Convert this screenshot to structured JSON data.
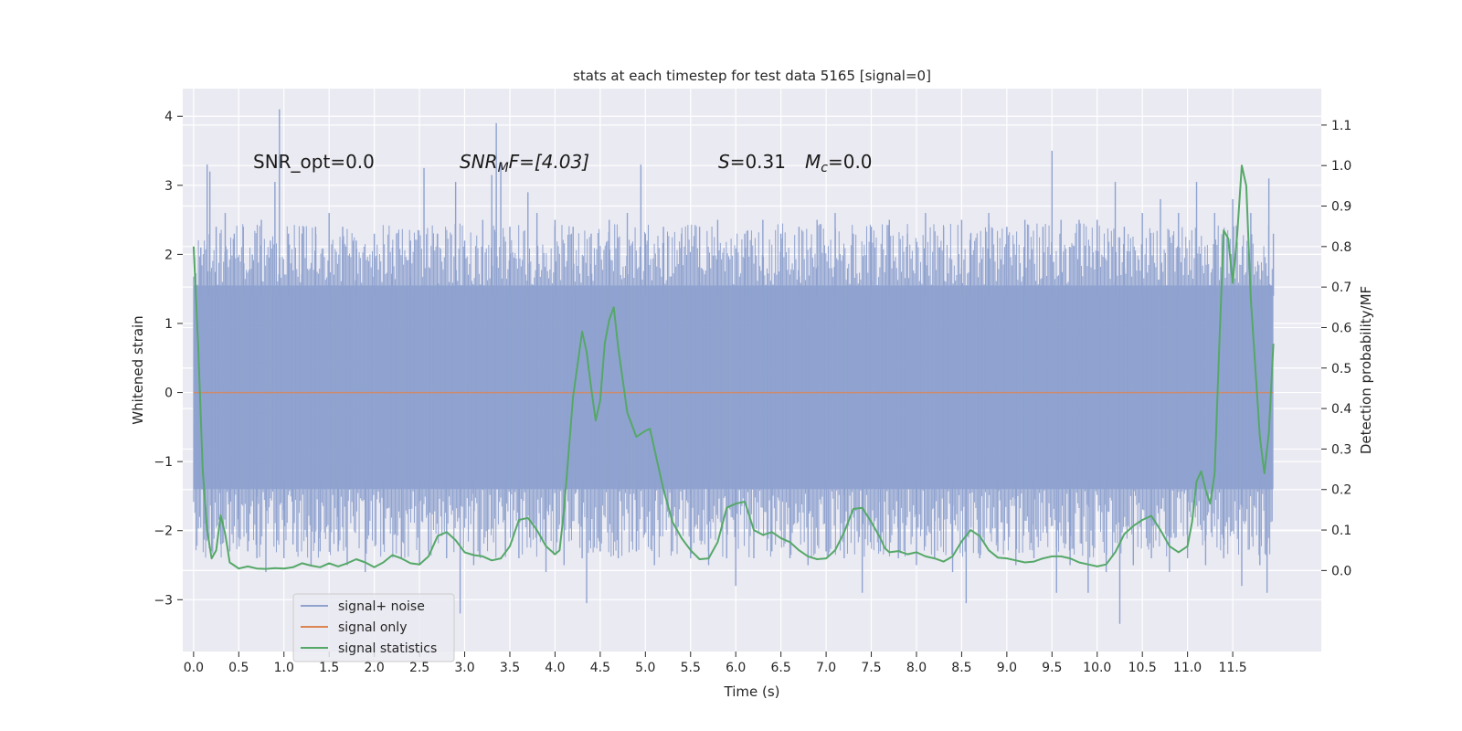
{
  "chart_data": {
    "type": "line",
    "title": "stats at each timestep for test data 5165 [signal=0]",
    "xlabel": "Time (s)",
    "ylabel": "Whitened strain",
    "y2label": "Detection probability/MF",
    "xlim": [
      -0.12,
      12.48
    ],
    "ylim": [
      -3.75,
      4.4
    ],
    "y2lim": [
      -0.2,
      1.19
    ],
    "x_ticks": [
      0.0,
      0.5,
      1.0,
      1.5,
      2.0,
      2.5,
      3.0,
      3.5,
      4.0,
      4.5,
      5.0,
      5.5,
      6.0,
      6.5,
      7.0,
      7.5,
      8.0,
      8.5,
      9.0,
      9.5,
      10.0,
      10.5,
      11.0,
      11.5
    ],
    "x_tick_labels": [
      "0.0",
      "0.5",
      "1.0",
      "1.5",
      "2.0",
      "2.5",
      "3.0",
      "3.5",
      "4.0",
      "4.5",
      "5.0",
      "5.5",
      "6.0",
      "6.5",
      "7.0",
      "7.5",
      "8.0",
      "8.5",
      "9.0",
      "9.5",
      "10.0",
      "10.5",
      "11.0",
      "11.5"
    ],
    "y_ticks": [
      -3,
      -2,
      -1,
      0,
      1,
      2,
      3,
      4
    ],
    "y_tick_labels": [
      "−3",
      "−2",
      "−1",
      "0",
      "1",
      "2",
      "3",
      "4"
    ],
    "y2_ticks": [
      0.0,
      0.1,
      0.2,
      0.3,
      0.4,
      0.5,
      0.6,
      0.7,
      0.8,
      0.9,
      1.0,
      1.1
    ],
    "y2_tick_labels": [
      "0.0",
      "0.1",
      "0.2",
      "0.3",
      "0.4",
      "0.5",
      "0.6",
      "0.7",
      "0.8",
      "0.9",
      "1.0",
      "1.1"
    ],
    "grid": true,
    "legend_position": "lower-left",
    "annotations": {
      "snr_opt": "SNR_opt=0.0",
      "snr_mf_italic": "SNR",
      "snr_mf_sub": "M",
      "snr_mf_rest": "F=[4.03]",
      "s_italic": "S",
      "s_rest": "=0.31",
      "mc_italic": "M",
      "mc_sub": "c",
      "mc_rest": "=0.0"
    },
    "series": [
      {
        "name": "signal+ noise",
        "color": "#8fa2cf",
        "noise_envelope": {
          "x_start": 0.0,
          "x_end": 11.95,
          "dense_low": -1.4,
          "dense_high": 1.55
        },
        "spikes": [
          [
            0.08,
            2.1
          ],
          [
            0.12,
            -1.9
          ],
          [
            0.15,
            3.3
          ],
          [
            0.18,
            3.2
          ],
          [
            0.2,
            -2.3
          ],
          [
            0.25,
            2.4
          ],
          [
            0.3,
            -2.2
          ],
          [
            0.35,
            2.6
          ],
          [
            0.4,
            -2.3
          ],
          [
            0.45,
            2.3
          ],
          [
            0.5,
            -2.1
          ],
          [
            0.55,
            2.4
          ],
          [
            0.6,
            -2.3
          ],
          [
            0.65,
            2.0
          ],
          [
            0.7,
            -2.4
          ],
          [
            0.75,
            2.5
          ],
          [
            0.8,
            -2.6
          ],
          [
            0.85,
            2.2
          ],
          [
            0.9,
            3.05
          ],
          [
            0.95,
            4.1
          ],
          [
            1.0,
            -2.4
          ],
          [
            1.05,
            2.3
          ],
          [
            1.1,
            -2.2
          ],
          [
            1.2,
            2.3
          ],
          [
            1.3,
            -2.5
          ],
          [
            1.35,
            2.4
          ],
          [
            1.4,
            -2.3
          ],
          [
            1.5,
            2.6
          ],
          [
            1.6,
            -2.3
          ],
          [
            1.65,
            2.4
          ],
          [
            1.7,
            -2.5
          ],
          [
            1.8,
            2.2
          ],
          [
            1.9,
            -2.6
          ],
          [
            2.0,
            2.3
          ],
          [
            2.1,
            -2.2
          ],
          [
            2.2,
            2.1
          ],
          [
            2.3,
            -2.4
          ],
          [
            2.4,
            2.2
          ],
          [
            2.5,
            -2.5
          ],
          [
            2.55,
            3.25
          ],
          [
            2.6,
            -2.3
          ],
          [
            2.7,
            2.3
          ],
          [
            2.8,
            -2.4
          ],
          [
            2.9,
            3.05
          ],
          [
            2.95,
            -3.2
          ],
          [
            3.0,
            2.2
          ],
          [
            3.1,
            -2.5
          ],
          [
            3.2,
            2.5
          ],
          [
            3.3,
            3.15
          ],
          [
            3.35,
            3.9
          ],
          [
            3.4,
            3.3
          ],
          [
            3.45,
            -2.3
          ],
          [
            3.5,
            2.4
          ],
          [
            3.6,
            -2.4
          ],
          [
            3.7,
            2.9
          ],
          [
            3.8,
            2.6
          ],
          [
            3.9,
            -2.6
          ],
          [
            4.0,
            2.5
          ],
          [
            4.1,
            -2.5
          ],
          [
            4.2,
            2.4
          ],
          [
            4.3,
            -2.4
          ],
          [
            4.35,
            -3.05
          ],
          [
            4.4,
            2.3
          ],
          [
            4.5,
            -2.3
          ],
          [
            4.6,
            2.5
          ],
          [
            4.7,
            -2.4
          ],
          [
            4.8,
            2.6
          ],
          [
            4.9,
            -2.3
          ],
          [
            4.95,
            3.3
          ],
          [
            5.0,
            2.3
          ],
          [
            5.1,
            -2.5
          ],
          [
            5.2,
            2.4
          ],
          [
            5.3,
            -2.3
          ],
          [
            5.4,
            2.3
          ],
          [
            5.5,
            -2.4
          ],
          [
            5.6,
            2.4
          ],
          [
            5.7,
            -2.5
          ],
          [
            5.8,
            2.5
          ],
          [
            5.9,
            -2.4
          ],
          [
            6.0,
            -2.8
          ],
          [
            6.1,
            2.3
          ],
          [
            6.2,
            -2.4
          ],
          [
            6.3,
            2.5
          ],
          [
            6.4,
            -2.3
          ],
          [
            6.5,
            2.3
          ],
          [
            6.6,
            -2.4
          ],
          [
            6.7,
            2.4
          ],
          [
            6.8,
            -2.5
          ],
          [
            6.9,
            2.5
          ],
          [
            7.0,
            -2.3
          ],
          [
            7.1,
            2.6
          ],
          [
            7.2,
            -2.4
          ],
          [
            7.3,
            2.3
          ],
          [
            7.4,
            -2.9
          ],
          [
            7.5,
            2.4
          ],
          [
            7.6,
            -2.3
          ],
          [
            7.7,
            2.5
          ],
          [
            7.8,
            -2.4
          ],
          [
            7.9,
            2.3
          ],
          [
            8.0,
            -2.5
          ],
          [
            8.1,
            2.6
          ],
          [
            8.2,
            -2.4
          ],
          [
            8.3,
            2.4
          ],
          [
            8.4,
            -2.6
          ],
          [
            8.5,
            2.5
          ],
          [
            8.55,
            -3.05
          ],
          [
            8.6,
            2.3
          ],
          [
            8.7,
            -2.4
          ],
          [
            8.8,
            2.6
          ],
          [
            8.9,
            -2.3
          ],
          [
            9.0,
            2.4
          ],
          [
            9.1,
            -2.5
          ],
          [
            9.2,
            2.5
          ],
          [
            9.3,
            -2.4
          ],
          [
            9.4,
            2.4
          ],
          [
            9.5,
            3.5
          ],
          [
            9.55,
            -2.9
          ],
          [
            9.6,
            2.5
          ],
          [
            9.7,
            -2.5
          ],
          [
            9.8,
            2.5
          ],
          [
            9.9,
            -2.9
          ],
          [
            10.0,
            2.5
          ],
          [
            10.1,
            -2.6
          ],
          [
            10.2,
            3.05
          ],
          [
            10.25,
            -3.35
          ],
          [
            10.3,
            2.4
          ],
          [
            10.4,
            -2.5
          ],
          [
            10.5,
            2.6
          ],
          [
            10.6,
            -2.4
          ],
          [
            10.7,
            2.8
          ],
          [
            10.8,
            -2.6
          ],
          [
            10.9,
            2.6
          ],
          [
            11.0,
            -2.4
          ],
          [
            11.1,
            3.05
          ],
          [
            11.2,
            -2.5
          ],
          [
            11.3,
            2.6
          ],
          [
            11.4,
            -2.4
          ],
          [
            11.5,
            2.8
          ],
          [
            11.6,
            -2.8
          ],
          [
            11.7,
            2.6
          ],
          [
            11.8,
            -2.5
          ],
          [
            11.88,
            -2.9
          ],
          [
            11.9,
            3.1
          ],
          [
            11.95,
            2.3
          ]
        ]
      },
      {
        "name": "signal only",
        "color": "#dd8452",
        "x": [
          0.0,
          11.95
        ],
        "y": [
          0.0,
          0.0
        ]
      },
      {
        "name": "signal statistics",
        "color": "#55a868",
        "axis": "right",
        "points": [
          [
            0.0,
            0.8
          ],
          [
            0.05,
            0.56
          ],
          [
            0.1,
            0.25
          ],
          [
            0.15,
            0.1
          ],
          [
            0.2,
            0.03
          ],
          [
            0.25,
            0.05
          ],
          [
            0.3,
            0.137
          ],
          [
            0.35,
            0.09
          ],
          [
            0.4,
            0.02
          ],
          [
            0.5,
            0.005
          ],
          [
            0.6,
            0.01
          ],
          [
            0.7,
            0.005
          ],
          [
            0.8,
            0.004
          ],
          [
            0.9,
            0.006
          ],
          [
            1.0,
            0.005
          ],
          [
            1.1,
            0.008
          ],
          [
            1.2,
            0.018
          ],
          [
            1.3,
            0.012
          ],
          [
            1.4,
            0.008
          ],
          [
            1.5,
            0.018
          ],
          [
            1.6,
            0.01
          ],
          [
            1.7,
            0.018
          ],
          [
            1.8,
            0.028
          ],
          [
            1.9,
            0.02
          ],
          [
            2.0,
            0.008
          ],
          [
            2.1,
            0.02
          ],
          [
            2.2,
            0.038
          ],
          [
            2.3,
            0.03
          ],
          [
            2.4,
            0.018
          ],
          [
            2.5,
            0.015
          ],
          [
            2.6,
            0.035
          ],
          [
            2.7,
            0.085
          ],
          [
            2.8,
            0.095
          ],
          [
            2.9,
            0.075
          ],
          [
            3.0,
            0.045
          ],
          [
            3.1,
            0.038
          ],
          [
            3.2,
            0.035
          ],
          [
            3.3,
            0.025
          ],
          [
            3.4,
            0.03
          ],
          [
            3.5,
            0.06
          ],
          [
            3.6,
            0.125
          ],
          [
            3.7,
            0.13
          ],
          [
            3.8,
            0.1
          ],
          [
            3.9,
            0.06
          ],
          [
            4.0,
            0.04
          ],
          [
            4.05,
            0.05
          ],
          [
            4.1,
            0.15
          ],
          [
            4.2,
            0.43
          ],
          [
            4.3,
            0.59
          ],
          [
            4.35,
            0.54
          ],
          [
            4.4,
            0.45
          ],
          [
            4.45,
            0.37
          ],
          [
            4.5,
            0.42
          ],
          [
            4.55,
            0.56
          ],
          [
            4.6,
            0.62
          ],
          [
            4.65,
            0.65
          ],
          [
            4.7,
            0.55
          ],
          [
            4.8,
            0.39
          ],
          [
            4.9,
            0.33
          ],
          [
            5.0,
            0.345
          ],
          [
            5.05,
            0.35
          ],
          [
            5.1,
            0.3
          ],
          [
            5.2,
            0.2
          ],
          [
            5.3,
            0.12
          ],
          [
            5.4,
            0.08
          ],
          [
            5.5,
            0.05
          ],
          [
            5.6,
            0.028
          ],
          [
            5.7,
            0.03
          ],
          [
            5.8,
            0.07
          ],
          [
            5.9,
            0.155
          ],
          [
            6.0,
            0.165
          ],
          [
            6.1,
            0.17
          ],
          [
            6.2,
            0.1
          ],
          [
            6.3,
            0.088
          ],
          [
            6.4,
            0.095
          ],
          [
            6.5,
            0.08
          ],
          [
            6.6,
            0.07
          ],
          [
            6.7,
            0.05
          ],
          [
            6.8,
            0.035
          ],
          [
            6.9,
            0.028
          ],
          [
            7.0,
            0.03
          ],
          [
            7.1,
            0.05
          ],
          [
            7.2,
            0.095
          ],
          [
            7.3,
            0.152
          ],
          [
            7.4,
            0.155
          ],
          [
            7.5,
            0.12
          ],
          [
            7.6,
            0.08
          ],
          [
            7.65,
            0.055
          ],
          [
            7.7,
            0.045
          ],
          [
            7.8,
            0.048
          ],
          [
            7.9,
            0.04
          ],
          [
            8.0,
            0.045
          ],
          [
            8.1,
            0.035
          ],
          [
            8.2,
            0.03
          ],
          [
            8.3,
            0.022
          ],
          [
            8.4,
            0.035
          ],
          [
            8.5,
            0.072
          ],
          [
            8.6,
            0.1
          ],
          [
            8.7,
            0.085
          ],
          [
            8.8,
            0.05
          ],
          [
            8.9,
            0.032
          ],
          [
            9.0,
            0.03
          ],
          [
            9.1,
            0.025
          ],
          [
            9.2,
            0.02
          ],
          [
            9.3,
            0.022
          ],
          [
            9.4,
            0.03
          ],
          [
            9.5,
            0.035
          ],
          [
            9.6,
            0.035
          ],
          [
            9.7,
            0.03
          ],
          [
            9.8,
            0.02
          ],
          [
            9.9,
            0.015
          ],
          [
            10.0,
            0.01
          ],
          [
            10.1,
            0.015
          ],
          [
            10.2,
            0.045
          ],
          [
            10.3,
            0.09
          ],
          [
            10.4,
            0.11
          ],
          [
            10.5,
            0.125
          ],
          [
            10.6,
            0.135
          ],
          [
            10.7,
            0.1
          ],
          [
            10.8,
            0.06
          ],
          [
            10.9,
            0.045
          ],
          [
            11.0,
            0.06
          ],
          [
            11.05,
            0.12
          ],
          [
            11.1,
            0.22
          ],
          [
            11.15,
            0.245
          ],
          [
            11.2,
            0.2
          ],
          [
            11.25,
            0.165
          ],
          [
            11.3,
            0.24
          ],
          [
            11.35,
            0.55
          ],
          [
            11.4,
            0.84
          ],
          [
            11.45,
            0.82
          ],
          [
            11.5,
            0.71
          ],
          [
            11.55,
            0.83
          ],
          [
            11.6,
            1.0
          ],
          [
            11.65,
            0.95
          ],
          [
            11.7,
            0.67
          ],
          [
            11.8,
            0.33
          ],
          [
            11.85,
            0.24
          ],
          [
            11.9,
            0.34
          ],
          [
            11.95,
            0.56
          ]
        ]
      }
    ]
  }
}
